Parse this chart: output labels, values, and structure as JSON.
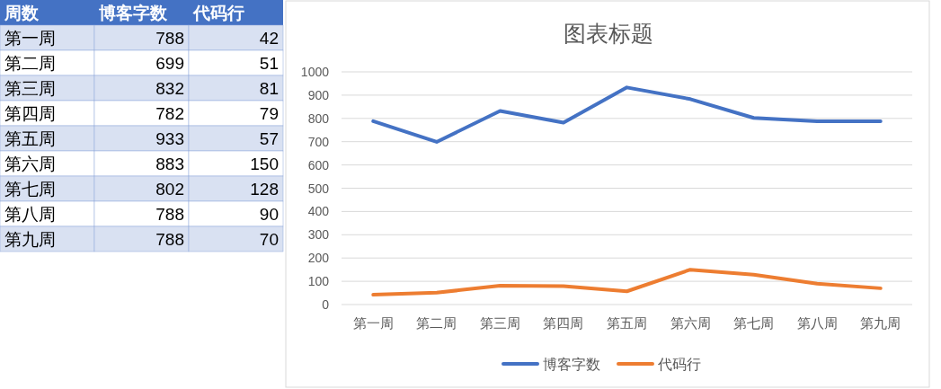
{
  "chart_data": [
    {
      "type": "other",
      "annotations": [
        "周数"
      ],
      "categories": [
        "第一周",
        "第二周",
        "第三周",
        "第四周",
        "第五周",
        "第六周",
        "第七周",
        "第八周",
        "第九周"
      ],
      "series": [
        {
          "name": "博客字数",
          "colors": [
            "#d9e1f2",
            "#ffffff",
            "#d9e1f2",
            "#ffffff",
            "#d9e1f2",
            "#ffffff",
            "#d9e1f2",
            "#ffffff",
            "#d9e1f2"
          ],
          "values": [
            788,
            699,
            832,
            782,
            933,
            883,
            802,
            788,
            788
          ]
        },
        {
          "name": "代码行",
          "colors": [
            "#d9e1f2",
            "#ffffff",
            "#d9e1f2",
            "#ffffff",
            "#d9e1f2",
            "#ffffff",
            "#d9e1f2",
            "#ffffff",
            "#d9e1f2"
          ],
          "values": [
            42,
            51,
            81,
            79,
            57,
            150,
            128,
            90,
            70
          ]
        }
      ],
      "data_labels": true
    },
    {
      "type": "line",
      "title": "图表标题",
      "categories": [
        "第一周",
        "第二周",
        "第三周",
        "第四周",
        "第五周",
        "第六周",
        "第七周",
        "第八周",
        "第九周"
      ],
      "series": [
        {
          "name": "博客字数",
          "color": "#4472c4",
          "values": [
            788,
            699,
            832,
            782,
            933,
            883,
            802,
            788,
            788
          ]
        },
        {
          "name": "代码行",
          "color": "#ed7d31",
          "values": [
            42,
            51,
            81,
            79,
            57,
            150,
            128,
            90,
            70
          ]
        }
      ],
      "ylim": [
        0,
        1000
      ],
      "yticks": [
        0,
        100,
        200,
        300,
        400,
        500,
        600,
        700,
        800,
        900,
        1000
      ],
      "grid": "y",
      "legend": "bottom",
      "line_style": "solid"
    }
  ]
}
